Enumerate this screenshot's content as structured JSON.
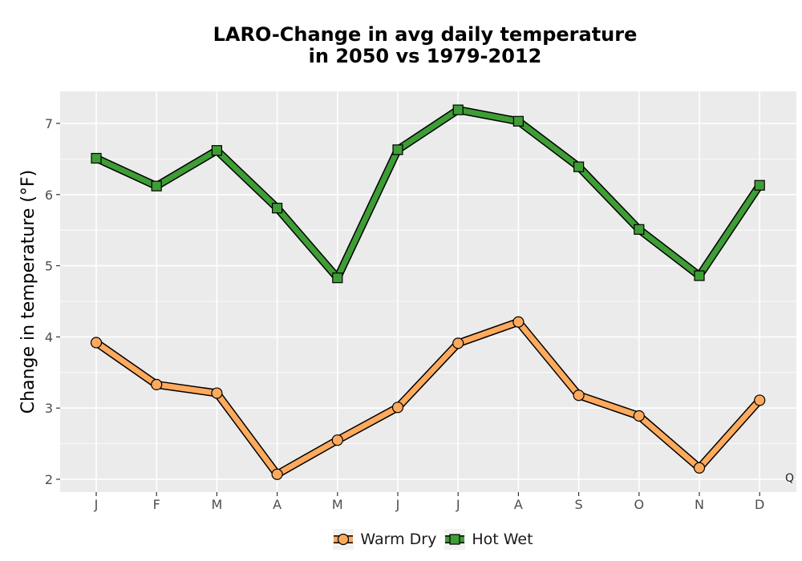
{
  "chart_data": {
    "type": "line",
    "title_lines": [
      "LARO-Change in avg daily temperature",
      "in 2050 vs 1979-2012"
    ],
    "xlabel": "",
    "ylabel": "Change in temperature (°F)",
    "categories": [
      "J",
      "F",
      "M",
      "A",
      "M",
      "J",
      "J",
      "A",
      "S",
      "O",
      "N",
      "D"
    ],
    "ylim": [
      1.82,
      7.45
    ],
    "yticks": [
      2,
      3,
      4,
      5,
      6,
      7
    ],
    "grid": true,
    "legend_position": "bottom",
    "series": [
      {
        "name": "Warm Dry",
        "marker": "circle",
        "color": "#FDAA5E",
        "values": [
          3.92,
          3.33,
          3.21,
          2.07,
          2.55,
          3.01,
          3.91,
          4.21,
          3.18,
          2.89,
          2.16,
          3.11
        ]
      },
      {
        "name": "Hot Wet",
        "marker": "square",
        "color": "#3E9D35",
        "values": [
          6.51,
          6.12,
          6.62,
          5.81,
          4.83,
          6.63,
          7.19,
          7.03,
          6.39,
          5.51,
          4.86,
          6.13
        ]
      }
    ]
  },
  "corner_text": "Q"
}
